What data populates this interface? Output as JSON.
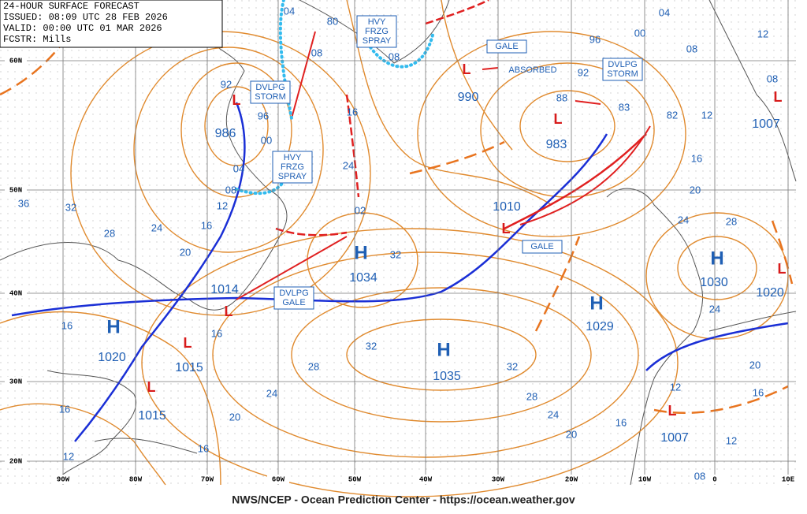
{
  "header": {
    "lines": [
      "24-HOUR SURFACE FORECAST",
      "ISSUED: 08:09 UTC 28 FEB 2026",
      "VALID:  00:00 UTC 01 MAR 2026",
      "FCSTR:  Mills"
    ]
  },
  "latitude_labels": [
    "60N",
    "50N",
    "40N",
    "30N",
    "20N"
  ],
  "longitude_labels": [
    "90W",
    "80W",
    "70W",
    "60W",
    "50W",
    "40W",
    "30W",
    "20W",
    "10W",
    "0",
    "10E"
  ],
  "high_symbol": "H",
  "low_symbol": "L",
  "highs": [
    1034,
    1035,
    1029,
    1030,
    1020
  ],
  "lows": [
    986,
    990,
    983,
    1007,
    1010,
    1014,
    1015,
    1015,
    1020,
    1007
  ],
  "isobar_labels": [
    "80",
    "04",
    "08",
    "16",
    "24",
    "02",
    "32",
    "92",
    "96",
    "00",
    "04",
    "08",
    "12",
    "16",
    "20",
    "24",
    "28",
    "32",
    "36",
    "16",
    "16",
    "16",
    "12",
    "16",
    "20",
    "24",
    "28",
    "32",
    "32",
    "28",
    "24",
    "20",
    "16",
    "12",
    "16",
    "20",
    "24",
    "28",
    "24",
    "20",
    "16",
    "12",
    "08",
    "04",
    "00",
    "96",
    "92",
    "88",
    "83",
    "82",
    "12",
    "08",
    "12",
    "08",
    "08"
  ],
  "warning_boxes": [
    [
      "DVLPG",
      "STORM"
    ],
    [
      "HVY",
      "FRZG",
      "SPRAY"
    ],
    [
      "HVY",
      "FRZG",
      "SPRAY"
    ],
    [
      "GALE"
    ],
    [
      "DVLPG",
      "STORM"
    ],
    [
      "GALE"
    ],
    [
      "DVLPG",
      "GALE"
    ]
  ],
  "annotation": "ABSORBED",
  "footer": "NWS/NCEP - Ocean Prediction Center - https://ocean.weather.gov"
}
